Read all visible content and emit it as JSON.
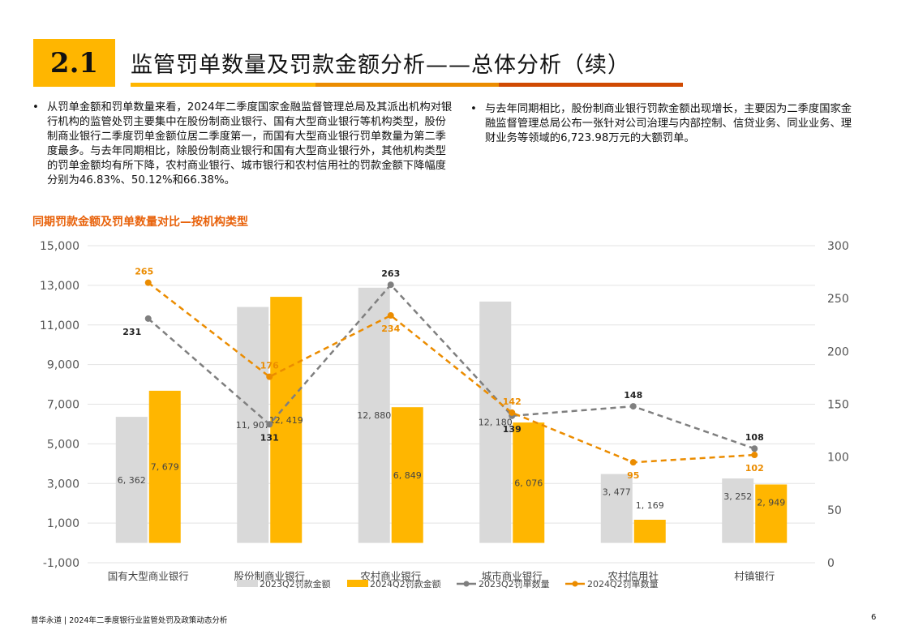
{
  "header": {
    "section_number": "2.1",
    "title": "监管罚单数量及罚款金额分析——总体分析（续）"
  },
  "bullets_left": [
    "从罚单金额和罚单数量来看，2024年二季度国家金融监督管理总局及其派出机构对银行机构的监管处罚主要集中在股份制商业银行、国有大型商业银行等机构类型，股份制商业银行二季度罚单金额位居二季度第一，而国有大型商业银行罚单数量为第二季度最多。与去年同期相比，除股份制商业银行和国有大型商业银行外，其他机构类型的罚单金额均有所下降，农村商业银行、城市银行和农村信用社的罚款金额下降幅度分别为46.83%、50.12%和66.38%。"
  ],
  "bullets_right": [
    "与去年同期相比，股份制商业银行罚款金额出现增长，主要因为二季度国家金融监督管理总局公布一张针对公司治理与内部控制、信贷业务、同业业务、理财业务等领域的6,723.98万元的大额罚单。"
  ],
  "bullet_mark": "•",
  "chart_title": "同期罚款金额及罚单数量对比—按机构类型",
  "chart_data": {
    "type": "bar",
    "categories": [
      "国有大型商业银行",
      "股份制商业银行",
      "农村商业银行",
      "城市商业银行",
      "农村信用社",
      "村镇银行"
    ],
    "series": [
      {
        "name": "2023Q2罚款金额",
        "kind": "bar",
        "axis": "left",
        "color": "#d9d9d9",
        "values": [
          6362,
          11907,
          12880,
          12180,
          3477,
          3252
        ],
        "labels": [
          "6, 362",
          "11, 907",
          "12, 880",
          "12, 180",
          "3, 477",
          "3, 252"
        ]
      },
      {
        "name": "2024Q2罚款金额",
        "kind": "bar",
        "axis": "left",
        "color": "#ffb600",
        "values": [
          7679,
          12419,
          6849,
          6076,
          1169,
          2949
        ],
        "labels": [
          "7, 679",
          "12, 419",
          "6, 849",
          "6, 076",
          "1, 169",
          "2, 949"
        ]
      },
      {
        "name": "2023Q2罚单数量",
        "kind": "line",
        "axis": "right",
        "color": "#7f7f7f",
        "label_color": "#222222",
        "values": [
          231,
          131,
          263,
          139,
          148,
          108
        ],
        "labels": [
          "231",
          "131",
          "263",
          "139",
          "148",
          "108"
        ]
      },
      {
        "name": "2024Q2罚单数量",
        "kind": "line",
        "axis": "right",
        "color": "#eb8c00",
        "label_color": "#eb8c00",
        "values": [
          265,
          176,
          234,
          142,
          95,
          102
        ],
        "labels": [
          "265",
          "176",
          "234",
          "142",
          "95",
          "102"
        ]
      }
    ],
    "y_left": {
      "min": -1000,
      "max": 15000,
      "step": 2000,
      "ticks": [
        "-1,000",
        "1,000",
        "3,000",
        "5,000",
        "7,000",
        "9,000",
        "11,000",
        "13,000",
        "15,000"
      ]
    },
    "y_right": {
      "min": 0,
      "max": 300,
      "step": 50,
      "ticks": [
        "0",
        "50",
        "100",
        "150",
        "200",
        "250",
        "300"
      ]
    },
    "grid": true,
    "legend_position": "bottom"
  },
  "footer": {
    "text": "普华永道 | 2024年二季度银行业监管处罚及政策动态分析",
    "page": "6"
  },
  "colors": {
    "accent_yellow": "#ffb600",
    "accent_orange": "#eb8c00",
    "accent_dark_orange": "#d04a02",
    "chart_title_color": "#e8620b"
  }
}
